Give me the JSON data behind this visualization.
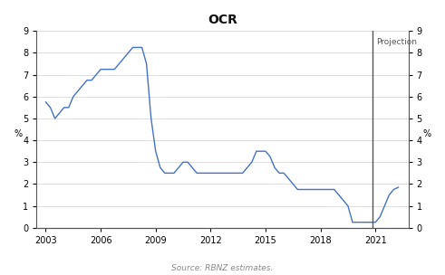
{
  "title": "OCR",
  "ylabel_left": "%",
  "ylabel_right": "%",
  "source_text": "Source: RBNZ estimates.",
  "projection_label": "Projection",
  "projection_x": 2020.83,
  "line_color": "#4472C4",
  "projection_line_color": "#555555",
  "ylim": [
    0,
    9
  ],
  "yticks": [
    0,
    1,
    2,
    3,
    4,
    5,
    6,
    7,
    8,
    9
  ],
  "xlim": [
    2002.5,
    2022.8
  ],
  "xticks": [
    2003,
    2006,
    2009,
    2012,
    2015,
    2018,
    2021
  ],
  "background_color": "#ffffff",
  "x": [
    2003.0,
    2003.25,
    2003.5,
    2003.75,
    2004.0,
    2004.25,
    2004.5,
    2004.75,
    2005.0,
    2005.25,
    2005.5,
    2005.75,
    2006.0,
    2006.25,
    2006.5,
    2006.75,
    2007.0,
    2007.25,
    2007.5,
    2007.75,
    2008.0,
    2008.25,
    2008.5,
    2008.75,
    2009.0,
    2009.25,
    2009.5,
    2009.75,
    2010.0,
    2010.25,
    2010.5,
    2010.75,
    2011.0,
    2011.25,
    2011.5,
    2011.75,
    2012.0,
    2012.25,
    2012.5,
    2012.75,
    2013.0,
    2013.25,
    2013.5,
    2013.75,
    2014.0,
    2014.25,
    2014.5,
    2014.75,
    2015.0,
    2015.25,
    2015.5,
    2015.75,
    2016.0,
    2016.25,
    2016.5,
    2016.75,
    2017.0,
    2017.25,
    2017.5,
    2017.75,
    2018.0,
    2018.25,
    2018.5,
    2018.75,
    2019.0,
    2019.25,
    2019.5,
    2019.75,
    2020.0,
    2020.25,
    2020.5,
    2020.83,
    2021.0,
    2021.25,
    2021.5,
    2021.75,
    2022.0,
    2022.25
  ],
  "y": [
    5.75,
    5.5,
    5.0,
    5.25,
    5.5,
    5.5,
    6.0,
    6.25,
    6.5,
    6.75,
    6.75,
    7.0,
    7.25,
    7.25,
    7.25,
    7.25,
    7.5,
    7.75,
    8.0,
    8.25,
    8.25,
    8.25,
    7.5,
    5.0,
    3.5,
    2.75,
    2.5,
    2.5,
    2.5,
    2.75,
    3.0,
    3.0,
    2.75,
    2.5,
    2.5,
    2.5,
    2.5,
    2.5,
    2.5,
    2.5,
    2.5,
    2.5,
    2.5,
    2.5,
    2.75,
    3.0,
    3.5,
    3.5,
    3.5,
    3.25,
    2.75,
    2.5,
    2.5,
    2.25,
    2.0,
    1.75,
    1.75,
    1.75,
    1.75,
    1.75,
    1.75,
    1.75,
    1.75,
    1.75,
    1.5,
    1.25,
    1.0,
    0.25,
    0.25,
    0.25,
    0.25,
    0.25,
    0.25,
    0.5,
    1.0,
    1.5,
    1.75,
    1.85
  ]
}
